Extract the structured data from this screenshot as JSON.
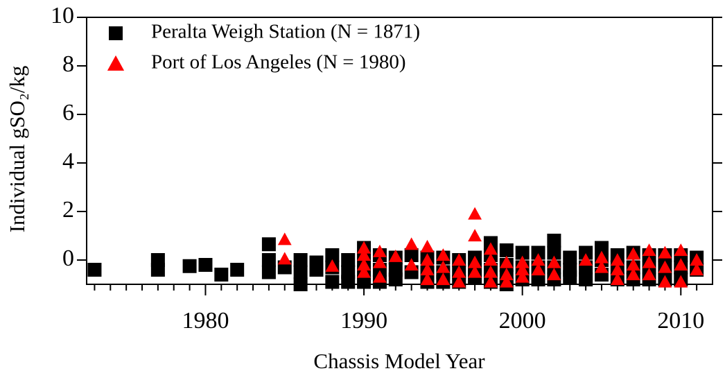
{
  "chart_data": {
    "type": "scatter",
    "xlabel": "Chassis Model Year",
    "ylabel": "Individual gSO₂/kg",
    "xlim": [
      1972.5,
      2012
    ],
    "ylim": [
      -1,
      10
    ],
    "xticks": [
      1980,
      1990,
      2000,
      2010
    ],
    "xminorticks": [
      1973,
      1974,
      1975,
      1976,
      1977,
      1978,
      1979,
      1981,
      1982,
      1983,
      1984,
      1985,
      1986,
      1987,
      1988,
      1989,
      1991,
      1992,
      1993,
      1994,
      1995,
      1996,
      1997,
      1998,
      1999,
      2001,
      2002,
      2003,
      2004,
      2005,
      2006,
      2007,
      2008,
      2009,
      2011
    ],
    "yticks": [
      0,
      2,
      4,
      6,
      8,
      10
    ],
    "legend": "upper left",
    "series": [
      {
        "name": "Peralta Weigh Station (N = 1871)",
        "color": "#000000",
        "marker": "square",
        "x": [
          1973,
          1977,
          1977,
          1979,
          1980,
          1981,
          1982,
          1984,
          1984,
          1984,
          1985,
          1986,
          1986,
          1986,
          1987,
          1987,
          1988,
          1988,
          1988,
          1989,
          1989,
          1989,
          1990,
          1990,
          1990,
          1990,
          1991,
          1991,
          1991,
          1992,
          1992,
          1992,
          1993,
          1993,
          1994,
          1994,
          1994,
          1995,
          1995,
          1995,
          1996,
          1996,
          1996,
          1997,
          1997,
          1997,
          1998,
          1998,
          1998,
          1998,
          1999,
          1999,
          1999,
          1999,
          2000,
          2000,
          2000,
          2001,
          2001,
          2001,
          2002,
          2002,
          2002,
          2002,
          2003,
          2003,
          2003,
          2004,
          2004,
          2004,
          2005,
          2005,
          2005,
          2006,
          2006,
          2006,
          2007,
          2007,
          2007,
          2008,
          2008,
          2008,
          2009,
          2009,
          2009,
          2010,
          2010,
          2010,
          2011,
          2011
        ],
        "y": [
          -0.4,
          0,
          -0.4,
          -0.25,
          -0.2,
          -0.6,
          -0.4,
          0.65,
          0,
          -0.5,
          -0.3,
          0,
          -0.5,
          -1,
          -0.1,
          -0.4,
          0.2,
          -0.3,
          -0.9,
          0,
          -0.5,
          -0.9,
          0.5,
          0,
          -0.5,
          -0.9,
          0.2,
          -0.4,
          -0.9,
          0.1,
          -0.4,
          -0.8,
          0.2,
          -0.5,
          0.1,
          -0.5,
          -0.9,
          0.1,
          -0.5,
          -0.9,
          0,
          -0.5,
          -0.9,
          0.1,
          -0.4,
          -0.7,
          0.7,
          0.2,
          -0.4,
          -0.9,
          0.4,
          -0.2,
          -0.7,
          -1,
          0.3,
          -0.3,
          -0.8,
          0.3,
          -0.3,
          -0.8,
          0.8,
          0.3,
          -0.3,
          -0.8,
          0.1,
          -0.4,
          -0.7,
          0.3,
          -0.3,
          -0.8,
          0.5,
          0,
          -0.6,
          0.2,
          -0.3,
          -0.8,
          0.3,
          -0.3,
          -0.8,
          0.2,
          -0.3,
          -0.8,
          0.2,
          -0.3,
          -0.8,
          0.2,
          -0.3,
          -0.8,
          0.1,
          -0.4
        ]
      },
      {
        "name": "Port of Los Angeles (N = 1980)",
        "color": "#ff0000",
        "marker": "triangle",
        "x": [
          1985,
          1985,
          1988,
          1990,
          1990,
          1990,
          1990,
          1991,
          1991,
          1991,
          1992,
          1993,
          1993,
          1994,
          1994,
          1994,
          1994,
          1995,
          1995,
          1995,
          1996,
          1996,
          1996,
          1997,
          1997,
          1997,
          1997,
          1998,
          1998,
          1998,
          1998,
          1999,
          1999,
          1999,
          2000,
          2000,
          2000,
          2001,
          2001,
          2002,
          2002,
          2004,
          2005,
          2005,
          2006,
          2006,
          2006,
          2007,
          2007,
          2007,
          2008,
          2008,
          2008,
          2009,
          2009,
          2009,
          2010,
          2010,
          2010,
          2011,
          2011
        ],
        "y": [
          0.85,
          0.05,
          -0.25,
          0.5,
          0.2,
          -0.2,
          -0.5,
          0.35,
          -0.1,
          -0.7,
          0.15,
          0.65,
          -0.2,
          0.55,
          0,
          -0.4,
          -0.8,
          0.2,
          -0.3,
          -0.8,
          0,
          -0.5,
          -0.9,
          1.9,
          1,
          -0.1,
          -0.5,
          0.45,
          0,
          -0.5,
          -0.9,
          -0.1,
          -0.6,
          -0.9,
          -0.1,
          -0.4,
          -0.7,
          0,
          -0.4,
          -0.1,
          -0.6,
          0,
          0.1,
          -0.3,
          0,
          -0.4,
          -0.8,
          0.25,
          -0.2,
          -0.6,
          0.4,
          -0.1,
          -0.6,
          0.3,
          -0.3,
          -0.9,
          0.4,
          -0.2,
          -0.9,
          0,
          -0.4
        ]
      }
    ]
  }
}
